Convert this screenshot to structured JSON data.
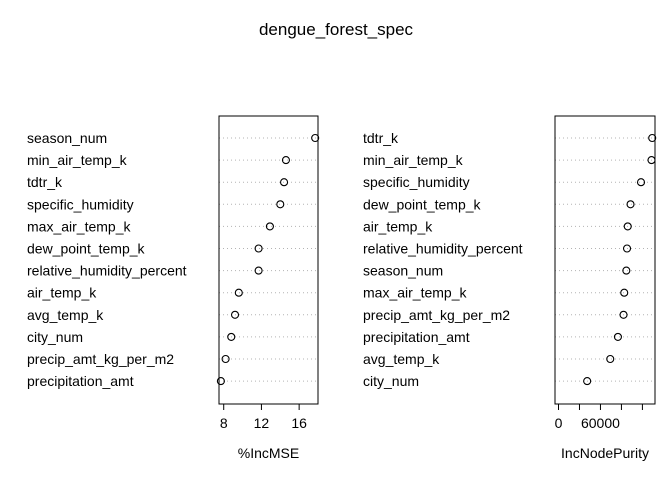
{
  "title": "dengue_forest_spec",
  "chart_data": [
    {
      "type": "scatter",
      "panel": "left",
      "xlabel": "%IncMSE",
      "xlim": [
        7.5,
        18.0
      ],
      "xticks": [
        8,
        12,
        16
      ],
      "tick_labels": [
        "8",
        "12",
        "16"
      ],
      "grid": "dotted horizontal",
      "categories": [
        "season_num",
        "min_air_temp_k",
        "tdtr_k",
        "specific_humidity",
        "max_air_temp_k",
        "dew_point_temp_k",
        "relative_humidity_percent",
        "air_temp_k",
        "avg_temp_k",
        "city_num",
        "precip_amt_kg_per_m2",
        "precipitation_amt"
      ],
      "values": [
        17.7,
        14.6,
        14.4,
        14.0,
        12.9,
        11.7,
        11.7,
        9.6,
        9.2,
        8.8,
        8.2,
        7.7
      ]
    },
    {
      "type": "scatter",
      "panel": "right",
      "xlabel": "IncNodePurity",
      "xlim": [
        -5000,
        138000
      ],
      "xticks": [
        0,
        60000
      ],
      "tick_labels": [
        "0",
        "60000"
      ],
      "minor_ticks": [
        30000,
        90000,
        120000
      ],
      "grid": "dotted horizontal",
      "categories": [
        "tdtr_k",
        "min_air_temp_k",
        "specific_humidity",
        "dew_point_temp_k",
        "air_temp_k",
        "relative_humidity_percent",
        "season_num",
        "max_air_temp_k",
        "precip_amt_kg_per_m2",
        "precipitation_amt",
        "avg_temp_k",
        "city_num"
      ],
      "values": [
        134000,
        133000,
        118000,
        103000,
        99000,
        98000,
        97000,
        94000,
        93000,
        85000,
        74000,
        41000
      ]
    }
  ]
}
